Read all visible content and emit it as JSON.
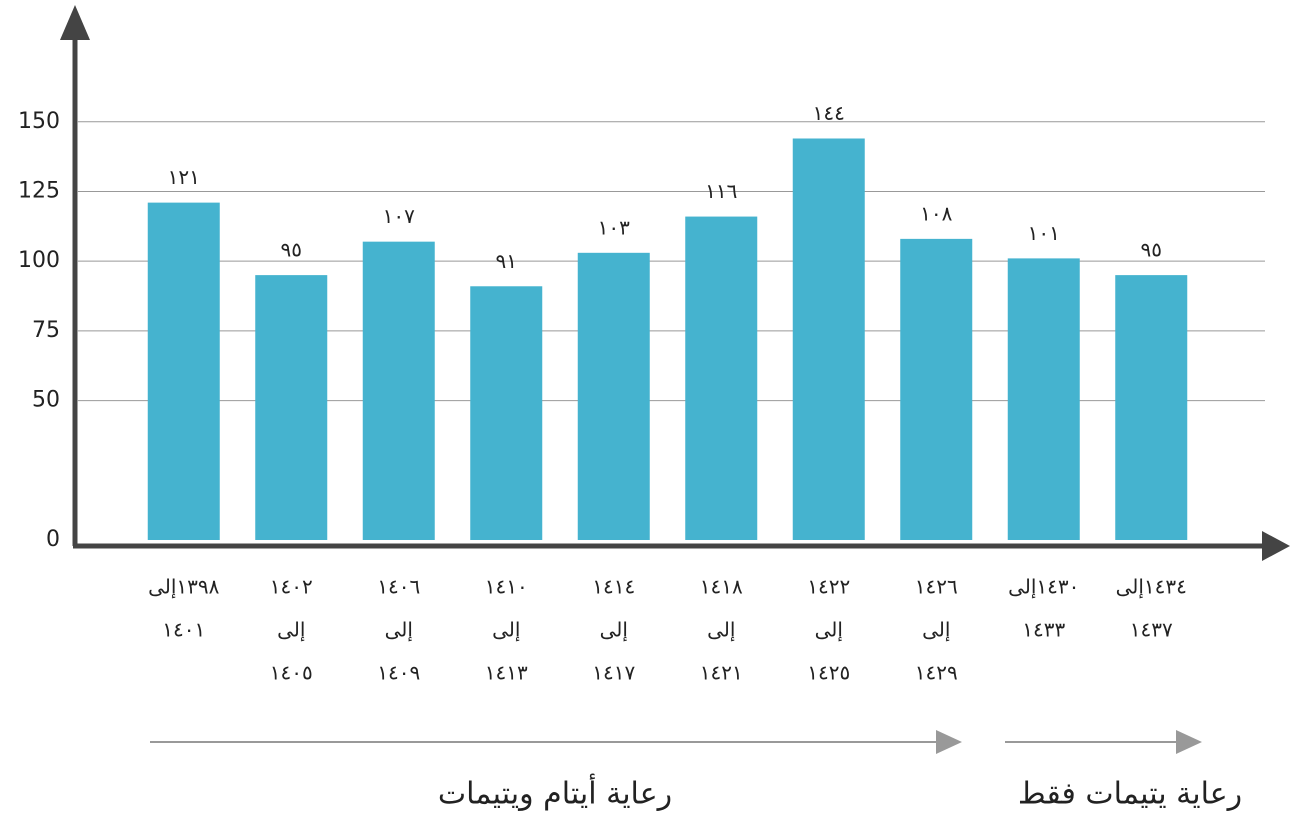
{
  "chart_data": {
    "type": "bar",
    "categories": [
      [
        "١٣٩٨إلى",
        "١٤٠١"
      ],
      [
        "١٤٠٢",
        "إلى",
        "١٤٠٥"
      ],
      [
        "١٤٠٦",
        "إلى",
        "١٤٠٩"
      ],
      [
        "١٤١٠",
        "إلى",
        "١٤١٣"
      ],
      [
        "١٤١٤",
        "إلى",
        "١٤١٧"
      ],
      [
        "١٤١٨",
        "إلى",
        "١٤٢١"
      ],
      [
        "١٤٢٢",
        "إلى",
        "١٤٢٥"
      ],
      [
        "١٤٢٦",
        "إلى",
        "١٤٢٩"
      ],
      [
        "١٤٣٠إلى",
        "١٤٣٣"
      ],
      [
        "١٤٣٤إلى",
        "١٤٣٧"
      ]
    ],
    "values": [
      121,
      95,
      107,
      91,
      103,
      116,
      144,
      108,
      101,
      95
    ],
    "value_labels": [
      "١٢١",
      "٩٥",
      "١٠٧",
      "٩١",
      "١٠٣",
      "١١٦",
      "١٤٤",
      "١٠٨",
      "١٠١",
      "٩٥"
    ],
    "color": "#45b3cf",
    "ylim": [
      0,
      170
    ],
    "yticks": [
      0,
      50,
      75,
      100,
      125,
      150
    ],
    "grid": true,
    "annotations": [
      "رعاية أيتام ويتيمات",
      "رعاية يتيمات فقط"
    ]
  }
}
